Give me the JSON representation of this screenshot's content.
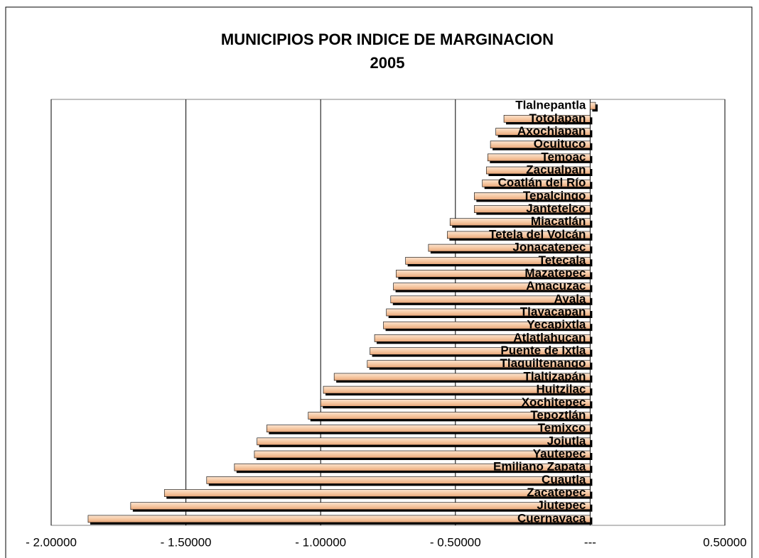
{
  "chart_data": {
    "type": "barh",
    "title": "MUNICIPIOS POR INDICE DE MARGINACION",
    "subtitle": "2005",
    "categories": [
      "Tlalnepantla",
      "Totolapan",
      "Axochiapan",
      "Ocuituco",
      "Temoac",
      "Zacualpan",
      "Coatlán del Río",
      "Tepalcingo",
      "Jantetelco",
      "Miacatlán",
      "Tetela del Volcán",
      "Jonacatepec",
      "Tetecala",
      "Mazatepec",
      "Amacuzac",
      "Ayala",
      "Tlayacapan",
      "Yecapixtla",
      "Atlatlahucan",
      "Puente de Ixtla",
      "Tlaquiltenango",
      "Tlaltizapán",
      "Huitzilac",
      "Xochitepec",
      "Tepoztlán",
      "Temixco",
      "Jojutla",
      "Yautepec",
      "Emiliano Zapata",
      "Cuautla",
      "Zacatepec",
      "Jiutepec",
      "Cuernavaca"
    ],
    "values": [
      0.02,
      -0.32,
      -0.35,
      -0.37,
      -0.38,
      -0.385,
      -0.4,
      -0.43,
      -0.43,
      -0.52,
      -0.53,
      -0.6,
      -0.685,
      -0.72,
      -0.73,
      -0.74,
      -0.756,
      -0.767,
      -0.8,
      -0.817,
      -0.827,
      -0.95,
      -0.99,
      -1.0,
      -1.046,
      -1.2,
      -1.236,
      -1.246,
      -1.32,
      -1.423,
      -1.58,
      -1.705,
      -1.863
    ],
    "color": "#f6c9a4",
    "xlim": [
      -2,
      0.5
    ],
    "xticks": [
      {
        "value": -2,
        "label": "- 2.00000"
      },
      {
        "value": -1.5,
        "label": "- 1.50000"
      },
      {
        "value": -1,
        "label": "- 1.00000"
      },
      {
        "value": -0.5,
        "label": "- 0.50000"
      },
      {
        "value": 0,
        "label": "---"
      },
      {
        "value": 0.5,
        "label": "0.50000"
      }
    ],
    "grid": true
  }
}
